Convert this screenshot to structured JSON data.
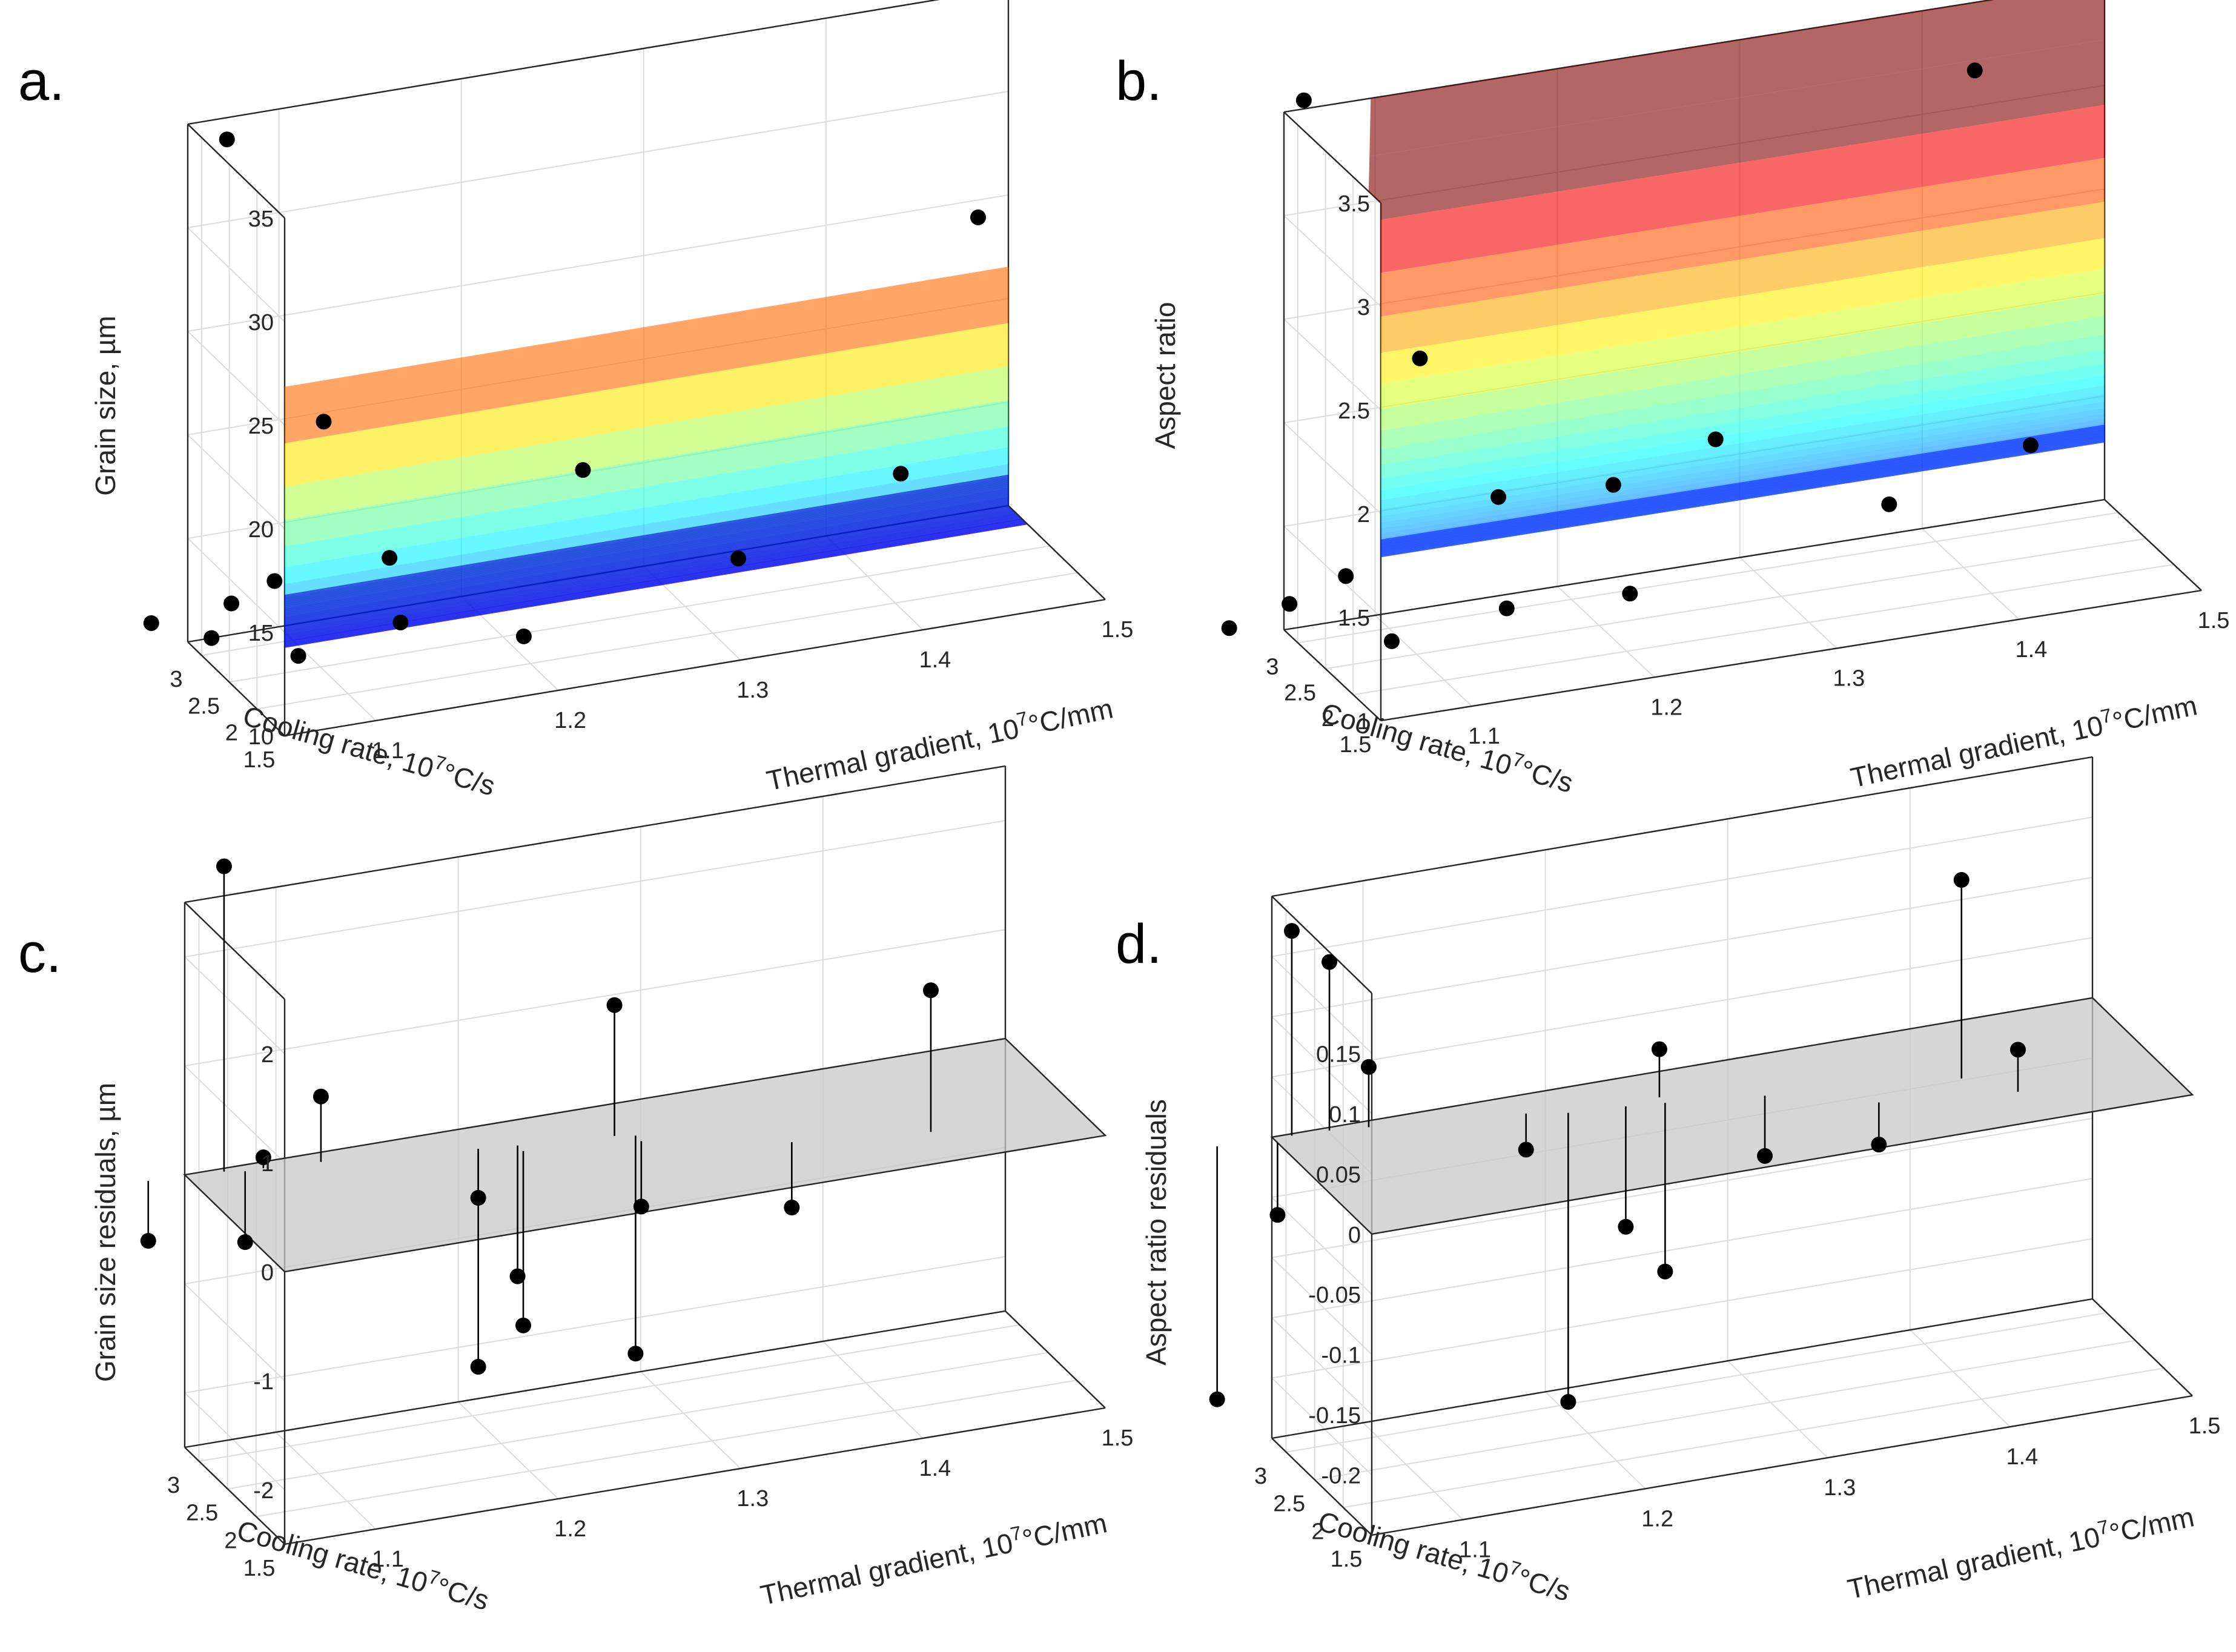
{
  "figure": {
    "colors": {
      "text": "#262626",
      "grid": "#dcdcdc",
      "box": "#262626",
      "point": "#000000",
      "plane": "#c8c8c8"
    }
  },
  "chart_data": [
    {
      "id": "a",
      "type": "scatter3d-surface",
      "panel_label": "a.",
      "xlabel_prefix": "Cooling rate, 10",
      "xlabel_suffix": "°C/s",
      "ylabel_prefix": "Thermal gradient, 10",
      "ylabel_suffix": "°C/mm",
      "exponent": "7",
      "zlabel": "Grain size, µm",
      "xlim": [
        1.5,
        3.25
      ],
      "ylim": [
        1.05,
        1.5
      ],
      "zlim": [
        10,
        35
      ],
      "xticks": [
        "1.5",
        "2",
        "2.5",
        "3"
      ],
      "yticks": [
        "1.1",
        "1.2",
        "1.3",
        "1.4",
        "1.5"
      ],
      "zticks": [
        "10",
        "15",
        "20",
        "25",
        "30",
        "35"
      ],
      "surface": {
        "model": "z = c + k / (x - x0)^p",
        "c": 11.4,
        "k": 1.2,
        "x0": 1.05,
        "p": 3.2,
        "gradient_dependent": false,
        "colormap": "jet",
        "clim": [
          10,
          30
        ]
      },
      "points": [
        {
          "x": 3.2,
          "y": 1.07,
          "z": 34.1
        },
        {
          "x": 2.15,
          "y": 1.45,
          "z": 27.5
        },
        {
          "x": 3.1,
          "y": 1.12,
          "z": 20.0
        },
        {
          "x": 1.9,
          "y": 1.4,
          "z": 16.5
        },
        {
          "x": 2.7,
          "y": 1.25,
          "z": 16.8
        },
        {
          "x": 2.9,
          "y": 1.15,
          "z": 13.5
        },
        {
          "x": 2.2,
          "y": 1.32,
          "z": 12.8
        },
        {
          "x": 3.0,
          "y": 1.09,
          "z": 13.0
        },
        {
          "x": 3.12,
          "y": 1.07,
          "z": 11.9
        },
        {
          "x": 2.7,
          "y": 1.15,
          "z": 10.9
        },
        {
          "x": 2.45,
          "y": 1.21,
          "z": 10.0
        },
        {
          "x": 3.15,
          "y": 1.06,
          "z": 10.3
        },
        {
          "x": 3.25,
          "y": 1.03,
          "z": 11.2
        },
        {
          "x": 2.9,
          "y": 1.1,
          "z": 9.5
        }
      ]
    },
    {
      "id": "b",
      "type": "scatter3d-surface",
      "panel_label": "b.",
      "xlabel_prefix": "Cooling rate, 10",
      "xlabel_suffix": "°C/s",
      "ylabel_prefix": "Thermal gradient, 10",
      "ylabel_suffix": "°C/mm",
      "exponent": "7",
      "zlabel": "Aspect ratio",
      "xlim": [
        1.5,
        3.25
      ],
      "ylim": [
        1.05,
        1.5
      ],
      "zlim": [
        1,
        3.5
      ],
      "xticks": [
        "1.5",
        "2",
        "2.5",
        "3"
      ],
      "yticks": [
        "1.1",
        "1.2",
        "1.3",
        "1.4",
        "1.5"
      ],
      "zticks": [
        "1",
        "1.5",
        "2",
        "2.5",
        "3",
        "3.5"
      ],
      "surface": {
        "model": "z = c + k / (x - x0)^p",
        "c": 1.3,
        "k": 0.4,
        "x0": 1.2,
        "p": 2.6,
        "gradient_dependent": false,
        "colormap": "jet",
        "clim": [
          1,
          3.5
        ]
      },
      "points": [
        {
          "x": 3.22,
          "y": 1.06,
          "z": 3.55
        },
        {
          "x": 2.3,
          "y": 1.4,
          "z": 3.45
        },
        {
          "x": 3.1,
          "y": 1.12,
          "z": 2.25
        },
        {
          "x": 1.95,
          "y": 1.42,
          "z": 1.7
        },
        {
          "x": 2.7,
          "y": 1.27,
          "z": 1.75
        },
        {
          "x": 3.0,
          "y": 1.16,
          "z": 1.55
        },
        {
          "x": 2.9,
          "y": 1.22,
          "z": 1.55
        },
        {
          "x": 2.2,
          "y": 1.35,
          "z": 1.45
        },
        {
          "x": 3.12,
          "y": 1.08,
          "z": 1.25
        },
        {
          "x": 3.15,
          "y": 1.05,
          "z": 1.15
        },
        {
          "x": 2.6,
          "y": 1.22,
          "z": 1.1
        },
        {
          "x": 2.85,
          "y": 1.16,
          "z": 1.05
        },
        {
          "x": 3.25,
          "y": 1.02,
          "z": 1.05
        },
        {
          "x": 2.95,
          "y": 1.1,
          "z": 0.95
        }
      ]
    },
    {
      "id": "c",
      "type": "stem3d-residuals",
      "panel_label": "c.",
      "xlabel_prefix": "Cooling rate, 10",
      "xlabel_suffix": "°C/s",
      "ylabel_prefix": "Thermal gradient, 10",
      "ylabel_suffix": "°C/mm",
      "exponent": "7",
      "zlabel": "Grain size residuals, µm",
      "xlim": [
        1.5,
        3.25
      ],
      "ylim": [
        1.05,
        1.5
      ],
      "zlim": [
        -2.5,
        2.5
      ],
      "xticks": [
        "1.5",
        "2",
        "2.5",
        "3"
      ],
      "yticks": [
        "1.1",
        "1.2",
        "1.3",
        "1.4",
        "1.5"
      ],
      "zticks": [
        "-2",
        "-1",
        "0",
        "1",
        "2"
      ],
      "points": [
        {
          "x": 3.2,
          "y": 1.07,
          "z": 2.8
        },
        {
          "x": 2.0,
          "y": 1.42,
          "z": 1.3
        },
        {
          "x": 2.75,
          "y": 1.27,
          "z": 1.2
        },
        {
          "x": 3.1,
          "y": 1.12,
          "z": 0.6
        },
        {
          "x": 3.15,
          "y": 1.09,
          "z": 0.1
        },
        {
          "x": 2.2,
          "y": 1.35,
          "z": -0.6
        },
        {
          "x": 2.9,
          "y": 1.2,
          "z": -0.45
        },
        {
          "x": 3.15,
          "y": 1.08,
          "z": -0.65
        },
        {
          "x": 3.25,
          "y": 1.03,
          "z": -0.55
        },
        {
          "x": 2.6,
          "y": 1.28,
          "z": -0.6
        },
        {
          "x": 2.85,
          "y": 1.22,
          "z": -1.2
        },
        {
          "x": 2.75,
          "y": 1.22,
          "z": -1.6
        },
        {
          "x": 2.7,
          "y": 1.28,
          "z": -2.0
        },
        {
          "x": 2.9,
          "y": 1.2,
          "z": -2.0
        }
      ]
    },
    {
      "id": "d",
      "type": "stem3d-residuals",
      "panel_label": "d.",
      "xlabel_prefix": "Cooling rate, 10",
      "xlabel_suffix": "°C/s",
      "ylabel_prefix": "Thermal gradient, 10",
      "ylabel_suffix": "°C/mm",
      "exponent": "7",
      "zlabel": "Aspect ratio residuals",
      "xlim": [
        1.5,
        3.25
      ],
      "ylim": [
        1.05,
        1.5
      ],
      "zlim": [
        -0.25,
        0.2
      ],
      "xticks": [
        "1.5",
        "2",
        "2.5",
        "3"
      ],
      "yticks": [
        "1.1",
        "1.2",
        "1.3",
        "1.4",
        "1.5"
      ],
      "zticks": [
        "-0.2",
        "-0.15",
        "-0.1",
        "-0.05",
        "0",
        "0.05",
        "0.1",
        "0.15"
      ],
      "points": [
        {
          "x": 3.22,
          "y": 1.06,
          "z": 0.17
        },
        {
          "x": 2.35,
          "y": 1.4,
          "z": 0.165
        },
        {
          "x": 3.2,
          "y": 1.08,
          "z": 0.14
        },
        {
          "x": 3.15,
          "y": 1.1,
          "z": 0.05
        },
        {
          "x": 2.0,
          "y": 1.42,
          "z": 0.035
        },
        {
          "x": 2.85,
          "y": 1.25,
          "z": 0.04
        },
        {
          "x": 2.2,
          "y": 1.35,
          "z": -0.035
        },
        {
          "x": 2.6,
          "y": 1.3,
          "z": -0.05
        },
        {
          "x": 2.95,
          "y": 1.18,
          "z": -0.03
        },
        {
          "x": 3.15,
          "y": 1.05,
          "z": -0.06
        },
        {
          "x": 2.8,
          "y": 1.23,
          "z": -0.1
        },
        {
          "x": 2.75,
          "y": 1.25,
          "z": -0.14
        },
        {
          "x": 2.85,
          "y": 1.2,
          "z": -0.24
        },
        {
          "x": 3.25,
          "y": 1.02,
          "z": -0.21
        }
      ]
    }
  ]
}
